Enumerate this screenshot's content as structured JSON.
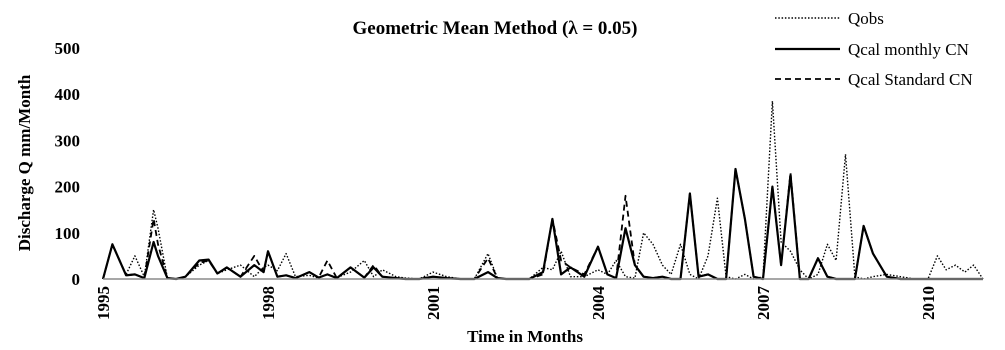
{
  "chart_data": {
    "type": "line",
    "title": "Geometric Mean Method (λ = 0.05)",
    "xlabel": "Time in Months",
    "ylabel": "Discharge Q  mm/Month",
    "xlim": [
      1995,
      2011
    ],
    "ylim": [
      0,
      500
    ],
    "yticks": [
      0,
      100,
      200,
      300,
      400,
      500
    ],
    "xticks": [
      1995,
      1998,
      2001,
      2004,
      2007,
      2010
    ],
    "grid": false,
    "legend_position": "top-right",
    "series": [
      {
        "name": "Qobs",
        "style": "dotted",
        "x": [
          1995.0,
          1995.17,
          1995.42,
          1995.58,
          1995.75,
          1995.92,
          1996.0,
          1996.17,
          1996.33,
          1996.5,
          1996.75,
          1996.92,
          1997.08,
          1997.25,
          1997.5,
          1997.75,
          1997.92,
          1998.0,
          1998.17,
          1998.33,
          1998.5,
          1998.75,
          1998.92,
          1999.08,
          1999.25,
          1999.5,
          1999.75,
          1999.92,
          2000.08,
          2000.33,
          2000.5,
          2000.75,
          2001.0,
          2001.25,
          2001.5,
          2001.75,
          2002.0,
          2002.17,
          2002.33,
          2002.5,
          2002.75,
          2003.0,
          2003.17,
          2003.33,
          2003.5,
          2003.75,
          2004.0,
          2004.17,
          2004.33,
          2004.5,
          2004.67,
          2004.83,
          2005.0,
          2005.17,
          2005.33,
          2005.5,
          2005.67,
          2005.83,
          2006.0,
          2006.17,
          2006.33,
          2006.5,
          2006.67,
          2006.83,
          2007.0,
          2007.17,
          2007.33,
          2007.5,
          2007.67,
          2007.83,
          2008.0,
          2008.17,
          2008.33,
          2008.5,
          2008.67,
          2008.83,
          2009.0,
          2009.25,
          2009.5,
          2009.75,
          2010.0,
          2010.17,
          2010.33,
          2010.5,
          2010.67,
          2010.83,
          2011.0
        ],
        "y": [
          0,
          75,
          10,
          50,
          5,
          150,
          110,
          2,
          0,
          5,
          30,
          40,
          12,
          20,
          30,
          5,
          25,
          30,
          18,
          55,
          5,
          8,
          2,
          10,
          3,
          15,
          40,
          5,
          20,
          5,
          2,
          0,
          15,
          5,
          0,
          0,
          55,
          2,
          0,
          0,
          0,
          25,
          20,
          60,
          5,
          5,
          20,
          10,
          40,
          5,
          2,
          100,
          75,
          30,
          10,
          75,
          10,
          0,
          50,
          175,
          5,
          0,
          10,
          0,
          5,
          385,
          80,
          60,
          20,
          0,
          10,
          75,
          40,
          270,
          5,
          0,
          5,
          10,
          5,
          0,
          0,
          50,
          20,
          30,
          15,
          30,
          0
        ]
      },
      {
        "name": "Qcal monthly CN",
        "style": "solid",
        "x": [
          1995.0,
          1995.17,
          1995.42,
          1995.58,
          1995.75,
          1995.92,
          1996.0,
          1996.17,
          1996.33,
          1996.5,
          1996.75,
          1996.92,
          1997.08,
          1997.25,
          1997.5,
          1997.75,
          1997.92,
          1998.0,
          1998.17,
          1998.33,
          1998.5,
          1998.75,
          1998.92,
          1999.08,
          1999.25,
          1999.5,
          1999.75,
          1999.92,
          2000.08,
          2000.33,
          2000.5,
          2000.75,
          2001.0,
          2001.25,
          2001.5,
          2001.75,
          2002.0,
          2002.17,
          2002.33,
          2002.5,
          2002.75,
          2003.0,
          2003.17,
          2003.33,
          2003.5,
          2003.75,
          2004.0,
          2004.17,
          2004.33,
          2004.5,
          2004.67,
          2004.83,
          2005.0,
          2005.17,
          2005.33,
          2005.5,
          2005.67,
          2005.83,
          2006.0,
          2006.17,
          2006.33,
          2006.5,
          2006.67,
          2006.83,
          2007.0,
          2007.17,
          2007.33,
          2007.5,
          2007.67,
          2007.83,
          2008.0,
          2008.17,
          2008.33,
          2008.5,
          2008.67,
          2008.83,
          2009.0,
          2009.25,
          2009.5,
          2009.75,
          2010.0,
          2010.17,
          2010.33,
          2010.5,
          2010.67,
          2010.83,
          2011.0
        ],
        "y": [
          0,
          75,
          8,
          10,
          2,
          80,
          50,
          2,
          0,
          5,
          40,
          42,
          12,
          25,
          5,
          30,
          15,
          60,
          5,
          8,
          2,
          15,
          3,
          10,
          2,
          25,
          3,
          25,
          5,
          2,
          0,
          0,
          5,
          2,
          0,
          0,
          15,
          2,
          0,
          0,
          0,
          15,
          130,
          10,
          25,
          5,
          70,
          10,
          2,
          110,
          30,
          5,
          2,
          5,
          0,
          0,
          185,
          5,
          10,
          0,
          0,
          238,
          130,
          5,
          0,
          200,
          30,
          225,
          0,
          0,
          45,
          5,
          0,
          0,
          0,
          115,
          55,
          5,
          0,
          0,
          0,
          0,
          0,
          0,
          0,
          0,
          0
        ]
      },
      {
        "name": "Qcal Standard CN",
        "style": "dashed",
        "x": [
          1995.0,
          1995.17,
          1995.42,
          1995.58,
          1995.75,
          1995.92,
          1996.0,
          1996.17,
          1996.33,
          1996.5,
          1996.75,
          1996.92,
          1997.08,
          1997.25,
          1997.5,
          1997.75,
          1997.92,
          1998.0,
          1998.17,
          1998.33,
          1998.5,
          1998.75,
          1998.92,
          1999.08,
          1999.25,
          1999.5,
          1999.75,
          1999.92,
          2000.08,
          2000.33,
          2000.5,
          2000.75,
          2001.0,
          2001.25,
          2001.5,
          2001.75,
          2002.0,
          2002.17,
          2002.33,
          2002.5,
          2002.75,
          2003.0,
          2003.17,
          2003.33,
          2003.5,
          2003.75,
          2004.0,
          2004.17,
          2004.33,
          2004.5,
          2004.67,
          2004.83,
          2005.0,
          2005.17,
          2005.33,
          2005.5,
          2005.67,
          2005.83,
          2006.0,
          2006.17,
          2006.33,
          2006.5,
          2006.67,
          2006.83,
          2007.0,
          2007.17,
          2007.33,
          2007.5,
          2007.67,
          2007.83,
          2008.0,
          2008.17,
          2008.33,
          2008.5,
          2008.67,
          2008.83,
          2009.0,
          2009.25,
          2009.5,
          2009.75,
          2010.0,
          2010.17,
          2010.33,
          2010.5,
          2010.67,
          2010.83,
          2011.0
        ],
        "y": [
          0,
          75,
          8,
          10,
          2,
          130,
          75,
          2,
          0,
          5,
          35,
          40,
          12,
          25,
          5,
          50,
          15,
          60,
          5,
          8,
          2,
          15,
          3,
          40,
          2,
          25,
          3,
          30,
          5,
          2,
          0,
          0,
          5,
          2,
          0,
          0,
          45,
          2,
          0,
          0,
          0,
          10,
          130,
          40,
          25,
          10,
          70,
          10,
          2,
          180,
          30,
          5,
          2,
          5,
          0,
          0,
          185,
          5,
          10,
          0,
          0,
          238,
          130,
          5,
          0,
          200,
          30,
          230,
          0,
          0,
          45,
          5,
          0,
          0,
          0,
          115,
          55,
          5,
          0,
          0,
          0,
          0,
          0,
          0,
          0,
          0,
          0
        ]
      }
    ]
  }
}
